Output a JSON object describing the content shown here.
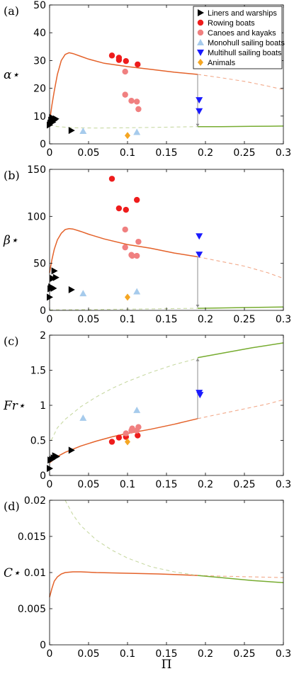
{
  "colors": {
    "orange": "#e4622a",
    "orange_dash": "#f2a98a",
    "green": "#77ac30",
    "green_dash": "#c8d9a3",
    "liners": "#000000",
    "rowing": "#ee1c1c",
    "canoes": "#f08080",
    "monohull": "#a6cbec",
    "multihull": "#1a1aff",
    "animals": "#f5a623",
    "arrow": "#8c8c8c"
  },
  "legend": [
    {
      "label": "Liners and warships",
      "marker": "triangle-right",
      "color": "#000000"
    },
    {
      "label": "Rowing boats",
      "marker": "circle",
      "color": "#ee1c1c"
    },
    {
      "label": "Canoes and kayaks",
      "marker": "circle",
      "color": "#f08080"
    },
    {
      "label": "Monohull sailing boats",
      "marker": "triangle-up",
      "color": "#a6cbec"
    },
    {
      "label": "Multihull sailing boats",
      "marker": "triangle-down",
      "color": "#1a1aff"
    },
    {
      "label": "Animals",
      "marker": "diamond",
      "color": "#f5a623"
    }
  ],
  "xlabel": "Π",
  "chart_data": [
    {
      "type": "scatter",
      "panel_label": "(a)",
      "ylabel": "α⋆",
      "xlim": [
        0,
        0.3
      ],
      "ylim": [
        0,
        50
      ],
      "xticks": [
        "0",
        "0.05",
        "0.1",
        "0.15",
        "0.2",
        "0.25",
        "0.3"
      ],
      "yticks": [
        "0",
        "10",
        "20",
        "30",
        "40",
        "50"
      ],
      "curves": [
        {
          "style": "solid",
          "color": "orange",
          "points": [
            [
              0,
              8
            ],
            [
              0.003,
              14
            ],
            [
              0.006,
              19
            ],
            [
              0.01,
              25
            ],
            [
              0.015,
              30
            ],
            [
              0.02,
              32.2
            ],
            [
              0.025,
              32.8
            ],
            [
              0.03,
              32.5
            ],
            [
              0.04,
              31.5
            ],
            [
              0.05,
              30.5
            ],
            [
              0.07,
              29
            ],
            [
              0.1,
              27.8
            ],
            [
              0.13,
              26.8
            ],
            [
              0.16,
              25.8
            ],
            [
              0.19,
              25
            ]
          ]
        },
        {
          "style": "dash",
          "color": "orange",
          "points": [
            [
              0.19,
              25
            ],
            [
              0.22,
              23.8
            ],
            [
              0.25,
              22.5
            ],
            [
              0.28,
              20.8
            ],
            [
              0.3,
              19.5
            ]
          ]
        },
        {
          "style": "dash",
          "color": "green",
          "points": [
            [
              0,
              7
            ],
            [
              0.01,
              6.2
            ],
            [
              0.03,
              5.8
            ],
            [
              0.06,
              5.7
            ],
            [
              0.1,
              5.8
            ],
            [
              0.15,
              6
            ],
            [
              0.19,
              6.2
            ]
          ]
        },
        {
          "style": "solid",
          "color": "green",
          "points": [
            [
              0.19,
              6.2
            ],
            [
              0.22,
              6.2
            ],
            [
              0.26,
              6.3
            ],
            [
              0.3,
              6.4
            ]
          ]
        }
      ],
      "arrow": {
        "x": 0.19,
        "y_from": 25,
        "y_to": 6.2
      },
      "points": [
        {
          "group": "liners",
          "x": 0.0,
          "y": 6.8
        },
        {
          "group": "liners",
          "x": 0.001,
          "y": 7.5
        },
        {
          "group": "liners",
          "x": 0.002,
          "y": 8.5
        },
        {
          "group": "liners",
          "x": 0.003,
          "y": 9.5
        },
        {
          "group": "liners",
          "x": 0.004,
          "y": 7.8
        },
        {
          "group": "liners",
          "x": 0.006,
          "y": 8.5
        },
        {
          "group": "liners",
          "x": 0.008,
          "y": 9
        },
        {
          "group": "liners",
          "x": 0.028,
          "y": 4.8
        },
        {
          "group": "rowing",
          "x": 0.08,
          "y": 31.8
        },
        {
          "group": "rowing",
          "x": 0.089,
          "y": 31
        },
        {
          "group": "rowing",
          "x": 0.089,
          "y": 30.2
        },
        {
          "group": "rowing",
          "x": 0.098,
          "y": 29.8
        },
        {
          "group": "rowing",
          "x": 0.113,
          "y": 28.6
        },
        {
          "group": "canoes",
          "x": 0.097,
          "y": 26
        },
        {
          "group": "canoes",
          "x": 0.097,
          "y": 17.7
        },
        {
          "group": "canoes",
          "x": 0.105,
          "y": 15.5
        },
        {
          "group": "canoes",
          "x": 0.112,
          "y": 15.2
        },
        {
          "group": "canoes",
          "x": 0.114,
          "y": 12.5
        },
        {
          "group": "monohull",
          "x": 0.043,
          "y": 4.6
        },
        {
          "group": "monohull",
          "x": 0.112,
          "y": 4.2
        },
        {
          "group": "multihull",
          "x": 0.192,
          "y": 15.8
        },
        {
          "group": "multihull",
          "x": 0.192,
          "y": 11.8
        },
        {
          "group": "animals",
          "x": 0.1,
          "y": 3
        }
      ],
      "legend_visible": true
    },
    {
      "type": "scatter",
      "panel_label": "(b)",
      "ylabel": "β⋆",
      "xlim": [
        0,
        0.3
      ],
      "ylim": [
        0,
        150
      ],
      "xticks": [
        "0",
        "0.05",
        "0.1",
        "0.15",
        "0.2",
        "0.25",
        "0.3"
      ],
      "yticks": [
        "0",
        "50",
        "100",
        "150"
      ],
      "curves": [
        {
          "style": "solid",
          "color": "orange",
          "points": [
            [
              0,
              40
            ],
            [
              0.003,
              54
            ],
            [
              0.006,
              65
            ],
            [
              0.01,
              75
            ],
            [
              0.015,
              82
            ],
            [
              0.02,
              86
            ],
            [
              0.025,
              87
            ],
            [
              0.03,
              86.5
            ],
            [
              0.04,
              84
            ],
            [
              0.05,
              81
            ],
            [
              0.07,
              76
            ],
            [
              0.1,
              70
            ],
            [
              0.13,
              66
            ],
            [
              0.16,
              61
            ],
            [
              0.19,
              57
            ]
          ]
        },
        {
          "style": "dash",
          "color": "orange",
          "points": [
            [
              0.19,
              57
            ],
            [
              0.22,
              52
            ],
            [
              0.25,
              47
            ],
            [
              0.28,
              40
            ],
            [
              0.3,
              34
            ]
          ]
        },
        {
          "style": "dash",
          "color": "green",
          "points": [
            [
              0,
              0.5
            ],
            [
              0.05,
              0.9
            ],
            [
              0.1,
              1.3
            ],
            [
              0.15,
              1.8
            ],
            [
              0.19,
              2.2
            ]
          ]
        },
        {
          "style": "solid",
          "color": "green",
          "points": [
            [
              0.19,
              2.2
            ],
            [
              0.22,
              2.6
            ],
            [
              0.26,
              3.1
            ],
            [
              0.3,
              3.6
            ]
          ]
        }
      ],
      "arrow": {
        "x": 0.19,
        "y_from": 57,
        "y_to": 3
      },
      "points": [
        {
          "group": "liners",
          "x": 0.0,
          "y": 14
        },
        {
          "group": "liners",
          "x": 0.001,
          "y": 23
        },
        {
          "group": "liners",
          "x": 0.002,
          "y": 25
        },
        {
          "group": "liners",
          "x": 0.004,
          "y": 34
        },
        {
          "group": "liners",
          "x": 0.005,
          "y": 23.5
        },
        {
          "group": "liners",
          "x": 0.006,
          "y": 42
        },
        {
          "group": "liners",
          "x": 0.008,
          "y": 35
        },
        {
          "group": "liners",
          "x": 0.028,
          "y": 22
        },
        {
          "group": "rowing",
          "x": 0.08,
          "y": 140
        },
        {
          "group": "rowing",
          "x": 0.089,
          "y": 108.5
        },
        {
          "group": "rowing",
          "x": 0.098,
          "y": 107
        },
        {
          "group": "rowing",
          "x": 0.112,
          "y": 117.5
        },
        {
          "group": "canoes",
          "x": 0.097,
          "y": 86
        },
        {
          "group": "canoes",
          "x": 0.097,
          "y": 67
        },
        {
          "group": "canoes",
          "x": 0.105,
          "y": 59
        },
        {
          "group": "canoes",
          "x": 0.106,
          "y": 58
        },
        {
          "group": "canoes",
          "x": 0.112,
          "y": 58
        },
        {
          "group": "canoes",
          "x": 0.114,
          "y": 73
        },
        {
          "group": "monohull",
          "x": 0.043,
          "y": 18
        },
        {
          "group": "monohull",
          "x": 0.112,
          "y": 20
        },
        {
          "group": "multihull",
          "x": 0.192,
          "y": 79
        },
        {
          "group": "multihull",
          "x": 0.192,
          "y": 59.5
        },
        {
          "group": "animals",
          "x": 0.1,
          "y": 14
        }
      ],
      "legend_visible": false
    },
    {
      "type": "scatter",
      "panel_label": "(c)",
      "ylabel": "Fr⋆",
      "xlim": [
        0,
        0.3
      ],
      "ylim": [
        0,
        2
      ],
      "xticks": [
        "0",
        "0.05",
        "0.1",
        "0.15",
        "0.2",
        "0.25",
        "0.3"
      ],
      "yticks": [
        "0",
        "0.5",
        "1",
        "1.5",
        "2"
      ],
      "curves": [
        {
          "style": "solid",
          "color": "orange",
          "points": [
            [
              0,
              0.18
            ],
            [
              0.01,
              0.27
            ],
            [
              0.02,
              0.33
            ],
            [
              0.04,
              0.42
            ],
            [
              0.06,
              0.49
            ],
            [
              0.08,
              0.55
            ],
            [
              0.1,
              0.6
            ],
            [
              0.13,
              0.66
            ],
            [
              0.16,
              0.73
            ],
            [
              0.19,
              0.81
            ]
          ]
        },
        {
          "style": "dash",
          "color": "orange",
          "points": [
            [
              0.19,
              0.81
            ],
            [
              0.22,
              0.88
            ],
            [
              0.25,
              0.95
            ],
            [
              0.28,
              1.02
            ],
            [
              0.3,
              1.08
            ]
          ]
        },
        {
          "style": "dash",
          "color": "green",
          "points": [
            [
              0.002,
              0.5
            ],
            [
              0.01,
              0.68
            ],
            [
              0.02,
              0.8
            ],
            [
              0.04,
              0.98
            ],
            [
              0.06,
              1.12
            ],
            [
              0.08,
              1.24
            ],
            [
              0.1,
              1.34
            ],
            [
              0.13,
              1.47
            ],
            [
              0.16,
              1.58
            ],
            [
              0.19,
              1.67
            ]
          ]
        },
        {
          "style": "solid",
          "color": "green",
          "points": [
            [
              0.19,
              1.68
            ],
            [
              0.22,
              1.74
            ],
            [
              0.26,
              1.82
            ],
            [
              0.3,
              1.89
            ]
          ]
        }
      ],
      "arrow": {
        "x": 0.19,
        "y_from": 0.81,
        "y_to": 1.67
      },
      "points": [
        {
          "group": "liners",
          "x": 0.0,
          "y": 0.1
        },
        {
          "group": "liners",
          "x": 0.001,
          "y": 0.22
        },
        {
          "group": "liners",
          "x": 0.003,
          "y": 0.23
        },
        {
          "group": "liners",
          "x": 0.005,
          "y": 0.25
        },
        {
          "group": "liners",
          "x": 0.007,
          "y": 0.28
        },
        {
          "group": "liners",
          "x": 0.009,
          "y": 0.27
        },
        {
          "group": "liners",
          "x": 0.028,
          "y": 0.36
        },
        {
          "group": "rowing",
          "x": 0.08,
          "y": 0.48
        },
        {
          "group": "rowing",
          "x": 0.089,
          "y": 0.54
        },
        {
          "group": "rowing",
          "x": 0.098,
          "y": 0.55
        },
        {
          "group": "rowing",
          "x": 0.113,
          "y": 0.57
        },
        {
          "group": "canoes",
          "x": 0.098,
          "y": 0.6
        },
        {
          "group": "canoes",
          "x": 0.105,
          "y": 0.64
        },
        {
          "group": "canoes",
          "x": 0.106,
          "y": 0.67
        },
        {
          "group": "canoes",
          "x": 0.112,
          "y": 0.64
        },
        {
          "group": "canoes",
          "x": 0.114,
          "y": 0.69
        },
        {
          "group": "monohull",
          "x": 0.043,
          "y": 0.82
        },
        {
          "group": "monohull",
          "x": 0.112,
          "y": 0.93
        },
        {
          "group": "multihull",
          "x": 0.192,
          "y": 1.18
        },
        {
          "group": "multihull",
          "x": 0.193,
          "y": 1.15
        },
        {
          "group": "animals",
          "x": 0.1,
          "y": 0.48
        }
      ],
      "legend_visible": false
    },
    {
      "type": "line",
      "panel_label": "(d)",
      "ylabel": "C⋆",
      "xlim": [
        0,
        0.3
      ],
      "ylim": [
        0,
        0.02
      ],
      "xticks": [
        "0",
        "0.05",
        "0.1",
        "0.15",
        "0.2",
        "0.25",
        "0.3"
      ],
      "yticks": [
        "0",
        "0.005",
        "0.01",
        "0.015",
        "0.02"
      ],
      "curves": [
        {
          "style": "solid",
          "color": "orange",
          "points": [
            [
              0,
              0.0066
            ],
            [
              0.003,
              0.0078
            ],
            [
              0.006,
              0.0088
            ],
            [
              0.01,
              0.0094
            ],
            [
              0.015,
              0.0098
            ],
            [
              0.02,
              0.01
            ],
            [
              0.03,
              0.0101
            ],
            [
              0.04,
              0.0101
            ],
            [
              0.06,
              0.01
            ],
            [
              0.1,
              0.0099
            ],
            [
              0.14,
              0.0098
            ],
            [
              0.19,
              0.0096
            ]
          ]
        },
        {
          "style": "dash",
          "color": "orange",
          "points": [
            [
              0.19,
              0.0096
            ],
            [
              0.22,
              0.0095
            ],
            [
              0.26,
              0.0094
            ],
            [
              0.3,
              0.0093
            ]
          ]
        },
        {
          "style": "dash",
          "color": "green",
          "points": [
            [
              0.02,
              0.02
            ],
            [
              0.03,
              0.018
            ],
            [
              0.04,
              0.0165
            ],
            [
              0.06,
              0.0145
            ],
            [
              0.08,
              0.0131
            ],
            [
              0.1,
              0.012
            ],
            [
              0.13,
              0.0108
            ],
            [
              0.16,
              0.0101
            ],
            [
              0.19,
              0.0096
            ]
          ]
        },
        {
          "style": "solid",
          "color": "green",
          "points": [
            [
              0.19,
              0.0096
            ],
            [
              0.22,
              0.0093
            ],
            [
              0.26,
              0.0089
            ],
            [
              0.3,
              0.0086
            ]
          ]
        }
      ],
      "arrow": null,
      "points": [],
      "legend_visible": false
    }
  ]
}
